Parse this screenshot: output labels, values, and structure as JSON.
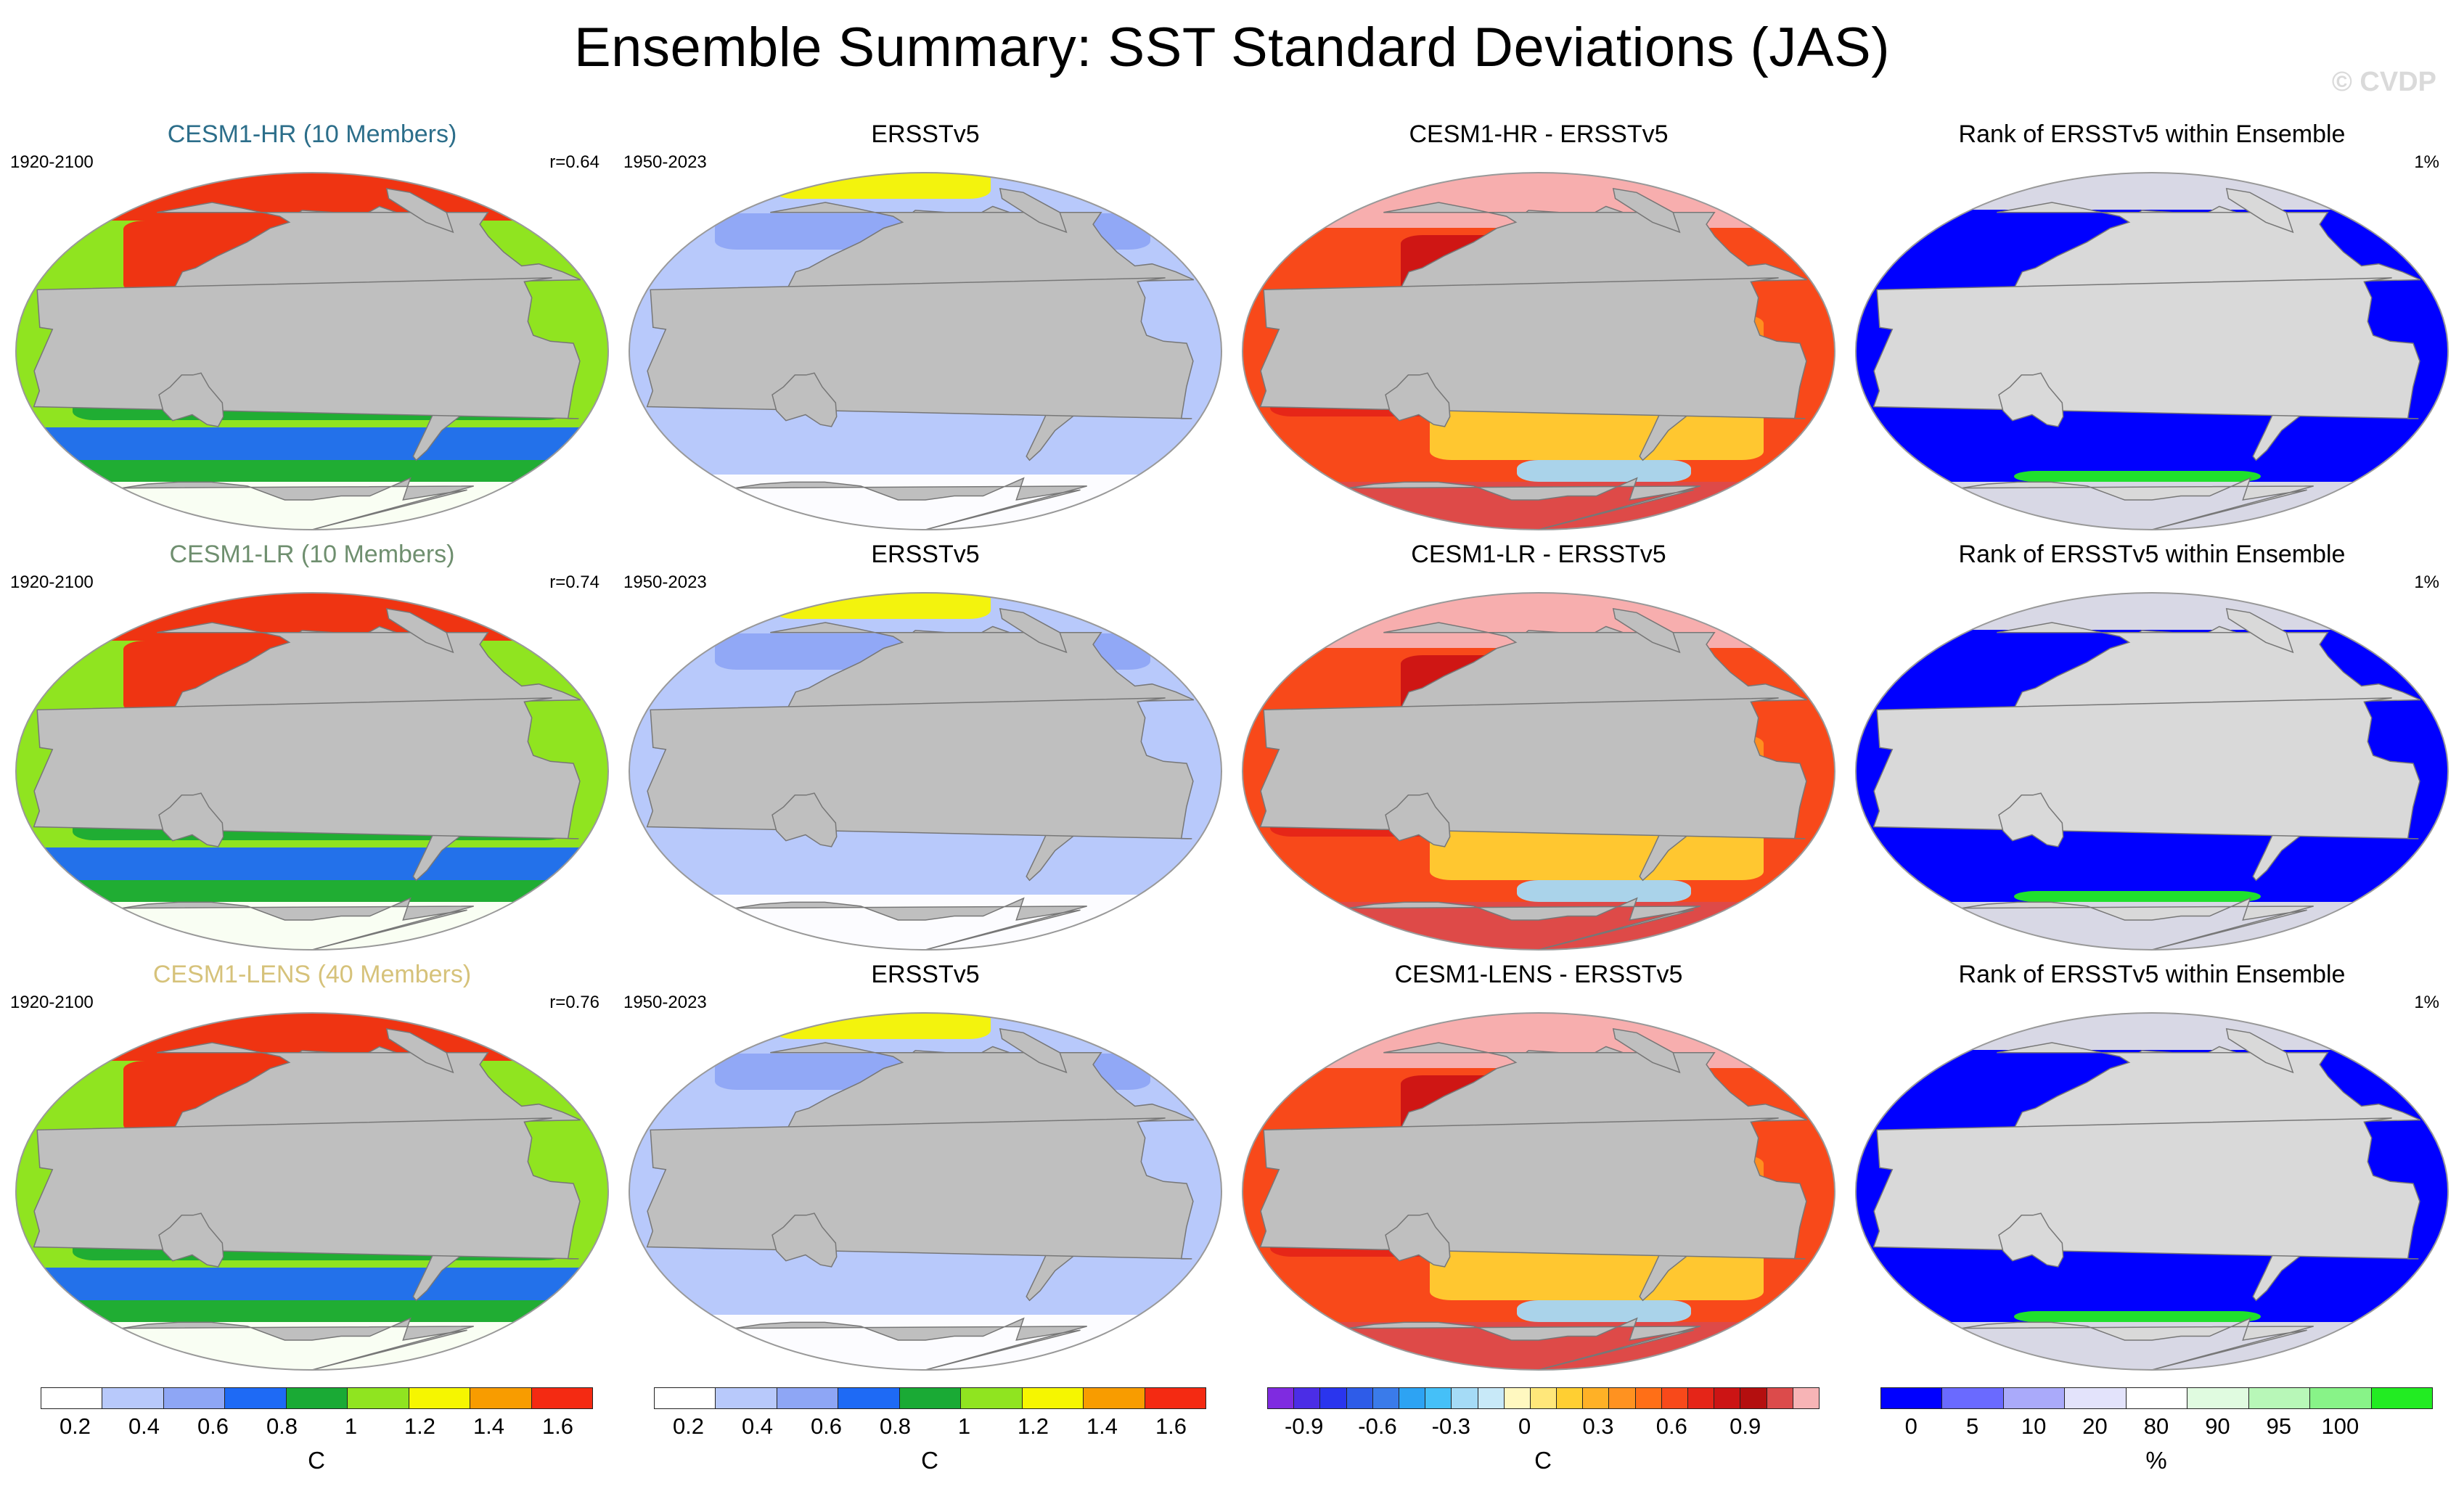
{
  "title": "Ensemble Summary: SST Standard Deviations (JAS)",
  "watermark": "© CVDP",
  "colors": {
    "land": "#bfbfbf",
    "ocean_default": "#ffffff",
    "coast": "#777777"
  },
  "rows": [
    {
      "model": {
        "title": "CESM1-HR (10 Members)",
        "title_color": "#2c6e8a",
        "years": "1920-2100",
        "pattern_corr": "r=0.64"
      },
      "obs": {
        "title": "ERSSTv5",
        "years": "1950-2023"
      },
      "diff": {
        "title": "CESM1-HR - ERSSTv5"
      },
      "rank": {
        "title": "Rank of ERSSTv5 within Ensemble",
        "note": "1%"
      }
    },
    {
      "model": {
        "title": "CESM1-LR (10 Members)",
        "title_color": "#6f8f6f",
        "years": "1920-2100",
        "pattern_corr": "r=0.74"
      },
      "obs": {
        "title": "ERSSTv5",
        "years": "1950-2023"
      },
      "diff": {
        "title": "CESM1-LR - ERSSTv5"
      },
      "rank": {
        "title": "Rank of ERSSTv5 within Ensemble",
        "note": "1%"
      }
    },
    {
      "model": {
        "title": "CESM1-LENS (40 Members)",
        "title_color": "#d6c27a",
        "years": "1920-2100",
        "pattern_corr": "r=0.76"
      },
      "obs": {
        "title": "ERSSTv5",
        "years": "1950-2023"
      },
      "diff": {
        "title": "CESM1-LENS - ERSSTv5"
      },
      "rank": {
        "title": "Rank of ERSSTv5 within Ensemble",
        "note": "1%"
      }
    }
  ],
  "chart_data": [
    {
      "type": "heatmap",
      "name": "model-std-colorbar",
      "units": "C",
      "levels": [
        0.1,
        0.2,
        0.3,
        0.4,
        0.5,
        0.6,
        0.7,
        0.8,
        0.9,
        1.0,
        1.1,
        1.2,
        1.3,
        1.4,
        1.5,
        1.6,
        1.7
      ],
      "tick_labels": [
        "0.2",
        "0.4",
        "0.6",
        "0.8",
        "1",
        "1.2",
        "1.4",
        "1.6"
      ],
      "tick_values": [
        0.2,
        0.4,
        0.6,
        0.8,
        1.0,
        1.2,
        1.4,
        1.6
      ],
      "range": [
        0.1,
        1.7
      ],
      "colors": [
        "#ffffff",
        "#b8c9fb",
        "#8ea6f5",
        "#1e6af5",
        "#1aaa35",
        "#90e420",
        "#f6f600",
        "#f89c00",
        "#f42a12"
      ]
    },
    {
      "type": "heatmap",
      "name": "obs-std-colorbar",
      "units": "C",
      "levels": [
        0.1,
        0.2,
        0.3,
        0.4,
        0.5,
        0.6,
        0.7,
        0.8,
        0.9,
        1.0,
        1.1,
        1.2,
        1.3,
        1.4,
        1.5,
        1.6,
        1.7
      ],
      "tick_labels": [
        "0.2",
        "0.4",
        "0.6",
        "0.8",
        "1",
        "1.2",
        "1.4",
        "1.6"
      ],
      "tick_values": [
        0.2,
        0.4,
        0.6,
        0.8,
        1.0,
        1.2,
        1.4,
        1.6
      ],
      "range": [
        0.1,
        1.7
      ],
      "colors": [
        "#ffffff",
        "#b8c9fb",
        "#8ea6f5",
        "#1e6af5",
        "#1aaa35",
        "#90e420",
        "#f6f600",
        "#f89c00",
        "#f42a12"
      ]
    },
    {
      "type": "heatmap",
      "name": "difference-colorbar",
      "units": "C",
      "tick_labels": [
        "-0.9",
        "-0.6",
        "-0.3",
        "0",
        "0.3",
        "0.6",
        "0.9"
      ],
      "tick_values": [
        -0.9,
        -0.6,
        -0.3,
        0,
        0.3,
        0.6,
        0.9
      ],
      "range": [
        -1.05,
        1.2
      ],
      "step": 0.15,
      "colors": [
        "#7f2be0",
        "#4b2de6",
        "#2a35ee",
        "#2e5ce8",
        "#3a7bea",
        "#2da3f3",
        "#45c0f8",
        "#a5dbf6",
        "#c8e9f8",
        "#fff8c0",
        "#ffe77a",
        "#ffcf32",
        "#ffb126",
        "#ff9220",
        "#ff6f17",
        "#f8491a",
        "#e52518",
        "#cc1414",
        "#b40f0f",
        "#dc4b4b",
        "#f7b4b6"
      ]
    },
    {
      "type": "heatmap",
      "name": "rank-colorbar",
      "units": "%",
      "edges": [
        -5,
        5,
        10,
        20,
        80,
        90,
        95,
        100,
        105
      ],
      "tick_labels": [
        "0",
        "5",
        "10",
        "20",
        "80",
        "90",
        "95",
        "100"
      ],
      "tick_values": [
        0,
        5,
        10,
        20,
        80,
        90,
        95,
        100
      ],
      "colors": [
        "#0000ff",
        "#6a6aff",
        "#aaaafa",
        "#e3e3fb",
        "#ffffff",
        "#e0fbe0",
        "#b8f7b8",
        "#88f388",
        "#22ec22"
      ]
    }
  ]
}
